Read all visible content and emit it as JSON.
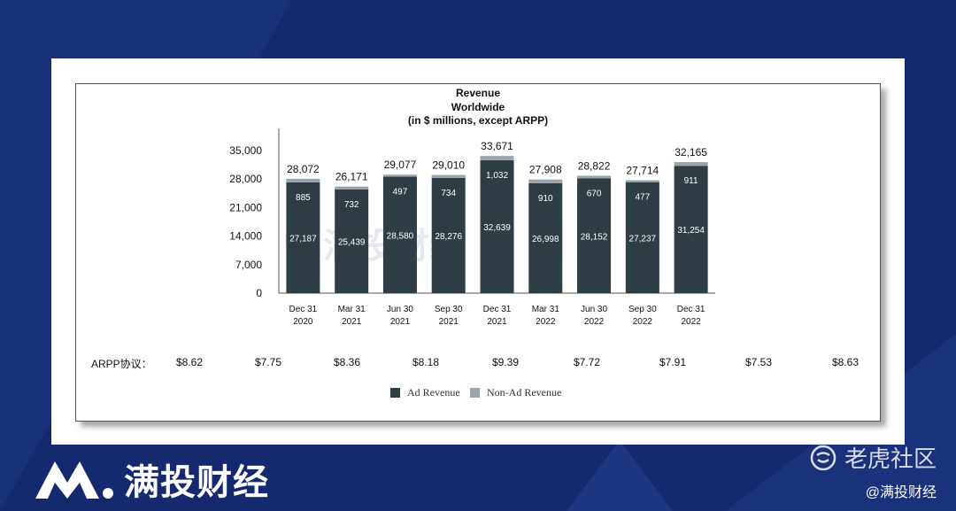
{
  "chart_data": {
    "type": "bar",
    "stacked": true,
    "title": "Revenue",
    "subtitle": "Worldwide",
    "subtitle2": "(in $ millions, except ARPP)",
    "categories": [
      "Dec 31 2020",
      "Mar 31 2021",
      "Jun 30 2021",
      "Sep 30 2021",
      "Dec 31 2021",
      "Mar 31 2022",
      "Jun 30 2022",
      "Sep 30 2022",
      "Dec 31 2022"
    ],
    "category_lines": [
      [
        "Dec 31",
        "2020"
      ],
      [
        "Mar 31",
        "2021"
      ],
      [
        "Jun 30",
        "2021"
      ],
      [
        "Sep 30",
        "2021"
      ],
      [
        "Dec 31",
        "2021"
      ],
      [
        "Mar 31",
        "2022"
      ],
      [
        "Jun 30",
        "2022"
      ],
      [
        "Sep 30",
        "2022"
      ],
      [
        "Dec 31",
        "2022"
      ]
    ],
    "series": [
      {
        "name": "Ad Revenue",
        "values": [
          27187,
          25439,
          28580,
          28276,
          32639,
          26998,
          28152,
          27237,
          31254
        ],
        "labels": [
          "27,187",
          "25,439",
          "28,580",
          "28,276",
          "32,639",
          "26,998",
          "28,152",
          "27,237",
          "31,254"
        ],
        "color": "#2f3d45"
      },
      {
        "name": "Non-Ad Revenue",
        "values": [
          885,
          732,
          497,
          734,
          1032,
          910,
          670,
          477,
          911
        ],
        "labels": [
          "885",
          "732",
          "497",
          "734",
          "1,032",
          "910",
          "670",
          "477",
          "911"
        ],
        "color": "#9aa4aa"
      }
    ],
    "totals": [
      28072,
      26171,
      29077,
      29010,
      33671,
      27908,
      28822,
      27714,
      32165
    ],
    "total_labels": [
      "28,072",
      "26,171",
      "29,077",
      "29,010",
      "33,671",
      "27,908",
      "28,822",
      "27,714",
      "32,165"
    ],
    "ylim": [
      0,
      35000
    ],
    "yticks": [
      0,
      7000,
      14000,
      21000,
      28000,
      35000
    ],
    "ytick_labels": [
      "0",
      "7,000",
      "14,000",
      "21,000",
      "28,000",
      "35,000"
    ],
    "grid": false,
    "legend_position": "bottom"
  },
  "arpp": {
    "label": "ARPP协议：",
    "values": [
      "$8.62",
      "$7.75",
      "$8.36",
      "$8.18",
      "$9.39",
      "$7.72",
      "$7.91",
      "$7.53",
      "$8.63"
    ]
  },
  "watermarks": {
    "brand": "满投财经",
    "community": "老虎社区",
    "handle": "@满投财经"
  },
  "colors": {
    "background": "#152a6e",
    "ad": "#2f3d45",
    "nonad": "#9aa4aa"
  }
}
